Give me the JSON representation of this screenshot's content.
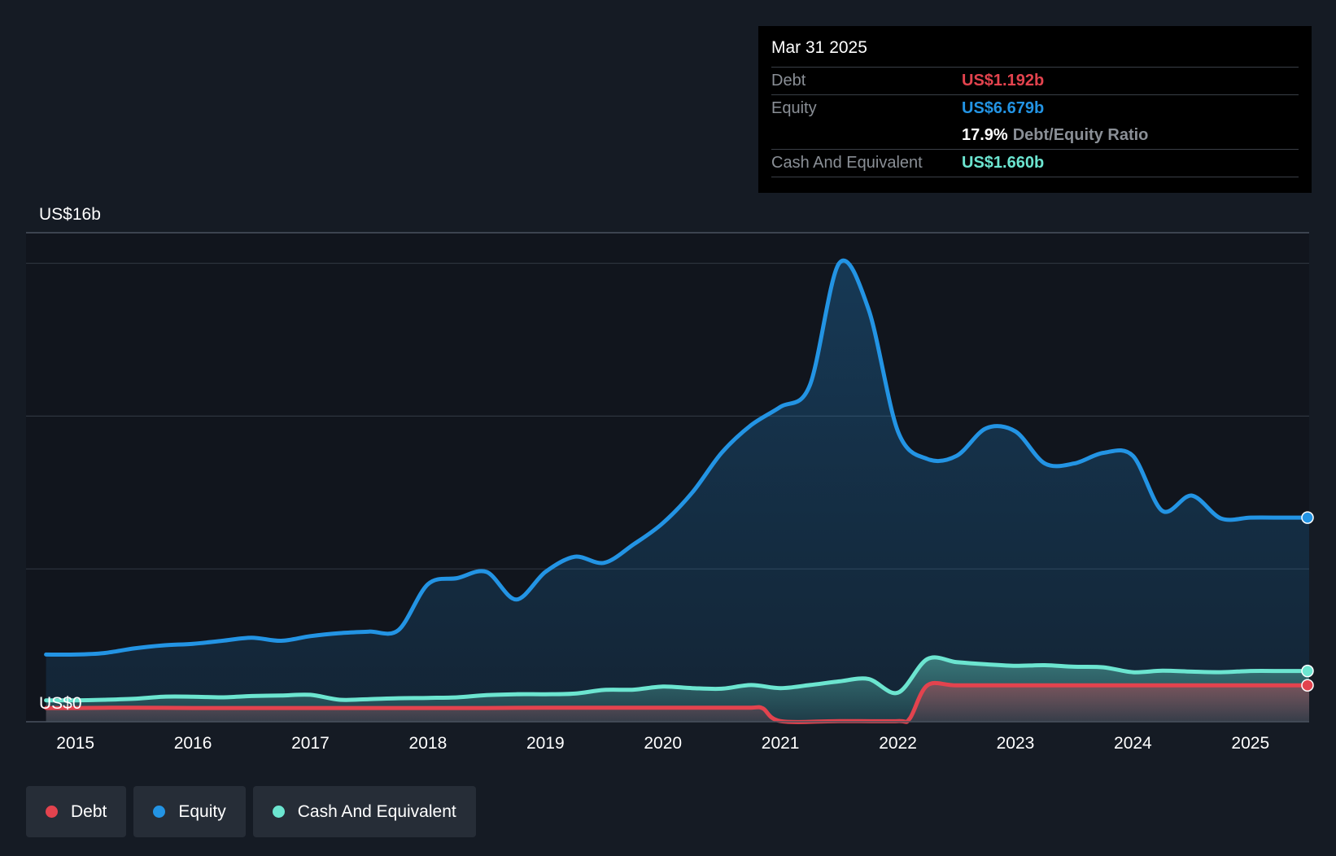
{
  "colors": {
    "background": "#151b24",
    "plot_background": "#11151d",
    "debt": "#e3434e",
    "equity": "#2394e4",
    "cash": "#6ce5d0",
    "grid": "#2e353f"
  },
  "tooltip": {
    "date": "Mar 31 2025",
    "debt_label": "Debt",
    "debt_value": "US$1.192b",
    "equity_label": "Equity",
    "equity_value": "US$6.679b",
    "ratio_value": "17.9%",
    "ratio_label": "Debt/Equity Ratio",
    "cash_label": "Cash And Equivalent",
    "cash_value": "US$1.660b"
  },
  "legend": [
    {
      "label": "Debt",
      "color_key": "debt"
    },
    {
      "label": "Equity",
      "color_key": "equity"
    },
    {
      "label": "Cash And Equivalent",
      "color_key": "cash"
    }
  ],
  "chart_data": {
    "type": "area",
    "title": "",
    "xlabel": "",
    "ylabel": "",
    "y_top_label": "US$16b",
    "y_bottom_label": "US$0",
    "ylim": [
      0,
      16
    ],
    "xlim": [
      2014.58,
      2025.5
    ],
    "x_ticks": [
      2015,
      2016,
      2017,
      2018,
      2019,
      2020,
      2021,
      2022,
      2023,
      2024,
      2025
    ],
    "x_tick_labels": [
      "2015",
      "2016",
      "2017",
      "2018",
      "2019",
      "2020",
      "2021",
      "2022",
      "2023",
      "2024",
      "2025"
    ],
    "series": [
      {
        "name": "Equity",
        "color_key": "equity",
        "x": [
          2014.75,
          2015.0,
          2015.25,
          2015.5,
          2015.75,
          2016.0,
          2016.25,
          2016.5,
          2016.75,
          2017.0,
          2017.25,
          2017.5,
          2017.75,
          2018.0,
          2018.25,
          2018.5,
          2018.75,
          2019.0,
          2019.25,
          2019.5,
          2019.75,
          2020.0,
          2020.25,
          2020.5,
          2020.75,
          2021.0,
          2021.25,
          2021.5,
          2021.75,
          2022.0,
          2022.25,
          2022.5,
          2022.75,
          2023.0,
          2023.25,
          2023.5,
          2023.75,
          2024.0,
          2024.25,
          2024.5,
          2024.75,
          2025.0,
          2025.25
        ],
        "values": [
          2.2,
          2.2,
          2.25,
          2.4,
          2.5,
          2.55,
          2.65,
          2.75,
          2.65,
          2.8,
          2.9,
          2.95,
          3.0,
          4.5,
          4.7,
          4.9,
          4.0,
          4.9,
          5.4,
          5.2,
          5.8,
          6.5,
          7.5,
          8.8,
          9.7,
          10.3,
          11.0,
          15.0,
          13.5,
          9.5,
          8.6,
          8.7,
          9.6,
          9.5,
          8.45,
          8.45,
          8.8,
          8.7,
          6.9,
          7.4,
          6.65,
          6.679,
          6.679
        ]
      },
      {
        "name": "Cash And Equivalent",
        "color_key": "cash",
        "x": [
          2014.75,
          2015.0,
          2015.25,
          2015.5,
          2015.75,
          2016.0,
          2016.25,
          2016.5,
          2016.75,
          2017.0,
          2017.25,
          2017.5,
          2017.75,
          2018.0,
          2018.25,
          2018.5,
          2018.75,
          2019.0,
          2019.25,
          2019.5,
          2019.75,
          2020.0,
          2020.25,
          2020.5,
          2020.75,
          2021.0,
          2021.25,
          2021.5,
          2021.75,
          2022.0,
          2022.25,
          2022.5,
          2022.75,
          2023.0,
          2023.25,
          2023.5,
          2023.75,
          2024.0,
          2024.25,
          2024.5,
          2024.75,
          2025.0,
          2025.25
        ],
        "values": [
          0.7,
          0.7,
          0.72,
          0.75,
          0.82,
          0.82,
          0.8,
          0.84,
          0.86,
          0.88,
          0.72,
          0.74,
          0.77,
          0.78,
          0.8,
          0.87,
          0.9,
          0.9,
          0.92,
          1.04,
          1.05,
          1.15,
          1.1,
          1.08,
          1.2,
          1.1,
          1.2,
          1.32,
          1.4,
          0.95,
          2.05,
          1.95,
          1.88,
          1.83,
          1.85,
          1.8,
          1.78,
          1.62,
          1.67,
          1.64,
          1.62,
          1.66,
          1.66
        ]
      },
      {
        "name": "Debt",
        "color_key": "debt",
        "x": [
          2014.75,
          2015.0,
          2015.5,
          2016.0,
          2016.5,
          2017.0,
          2017.5,
          2018.0,
          2018.5,
          2019.0,
          2019.5,
          2020.0,
          2020.5,
          2020.75,
          2020.85,
          2021.0,
          2021.5,
          2022.0,
          2022.1,
          2022.25,
          2022.5,
          2023.0,
          2023.5,
          2024.0,
          2024.5,
          2025.0,
          2025.25
        ],
        "values": [
          0.45,
          0.45,
          0.46,
          0.45,
          0.45,
          0.45,
          0.45,
          0.45,
          0.45,
          0.46,
          0.46,
          0.46,
          0.46,
          0.46,
          0.44,
          0.02,
          0.02,
          0.02,
          0.1,
          1.19,
          1.19,
          1.19,
          1.19,
          1.19,
          1.192,
          1.192,
          1.192
        ]
      }
    ]
  }
}
